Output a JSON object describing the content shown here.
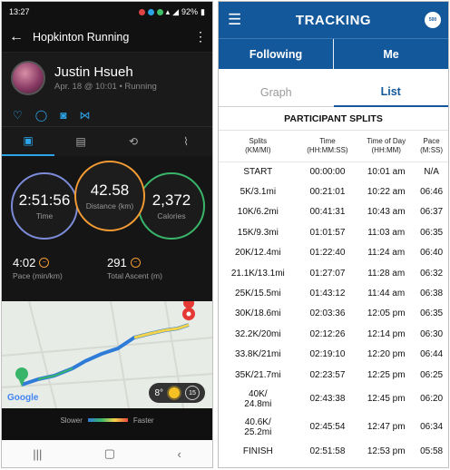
{
  "left_app": {
    "status": {
      "time": "13:27",
      "battery": "92%"
    },
    "title": "Hopkinton Running",
    "profile": {
      "name": "Justin Hsueh",
      "meta": "Apr. 18 @ 10:01 • Running"
    },
    "stats": {
      "time": {
        "value": "2:51:56",
        "label": "Time"
      },
      "distance": {
        "value": "42.58",
        "label": "Distance (km)"
      },
      "calories": {
        "value": "2,372",
        "label": "Calories"
      },
      "pace": {
        "value": "4:02",
        "label": "Pace (min/km)"
      },
      "ascent": {
        "value": "291",
        "label": "Total Ascent (m)"
      }
    },
    "map": {
      "attribution": "Google",
      "temperature": "8°",
      "wind": "15"
    },
    "legend": {
      "slower": "Slower",
      "faster": "Faster"
    },
    "icons": [
      "heart-icon",
      "comment-icon",
      "camera-icon",
      "share-icon",
      "stats-tab-icon",
      "details-tab-icon",
      "laps-tab-icon",
      "chart-tab-icon"
    ]
  },
  "right_app": {
    "header": {
      "title": "TRACKING",
      "logo_text": "500"
    },
    "toggle": {
      "following": "Following",
      "me": "Me"
    },
    "subtabs": {
      "graph": "Graph",
      "list": "List"
    },
    "section_title": "PARTICIPANT SPLITS",
    "columns": [
      {
        "line1": "Splits",
        "line2": "(KM/MI)"
      },
      {
        "line1": "Time",
        "line2": "(HH:MM:SS)"
      },
      {
        "line1": "Time of Day",
        "line2": "(HH:MM)"
      },
      {
        "line1": "Pace",
        "line2": "(M:SS)"
      }
    ],
    "splits": [
      [
        "START",
        "00:00:00",
        "10:01 am",
        "N/A"
      ],
      [
        "5K/3.1mi",
        "00:21:01",
        "10:22 am",
        "06:46"
      ],
      [
        "10K/6.2mi",
        "00:41:31",
        "10:43 am",
        "06:37"
      ],
      [
        "15K/9.3mi",
        "01:01:57",
        "11:03 am",
        "06:35"
      ],
      [
        "20K/12.4mi",
        "01:22:40",
        "11:24 am",
        "06:40"
      ],
      [
        "21.1K/13.1mi",
        "01:27:07",
        "11:28 am",
        "06:32"
      ],
      [
        "25K/15.5mi",
        "01:43:12",
        "11:44 am",
        "06:38"
      ],
      [
        "30K/18.6mi",
        "02:03:36",
        "12:05 pm",
        "06:35"
      ],
      [
        "32.2K/20mi",
        "02:12:26",
        "12:14 pm",
        "06:30"
      ],
      [
        "33.8K/21mi",
        "02:19:10",
        "12:20 pm",
        "06:44"
      ],
      [
        "35K/21.7mi",
        "02:23:57",
        "12:25 pm",
        "06:25"
      ],
      [
        "40K/\n24.8mi",
        "02:43:38",
        "12:45 pm",
        "06:20"
      ],
      [
        "40.6K/\n25.2mi",
        "02:45:54",
        "12:47 pm",
        "06:34"
      ],
      [
        "FINISH",
        "02:51:58",
        "12:53 pm",
        "05:58"
      ]
    ]
  }
}
